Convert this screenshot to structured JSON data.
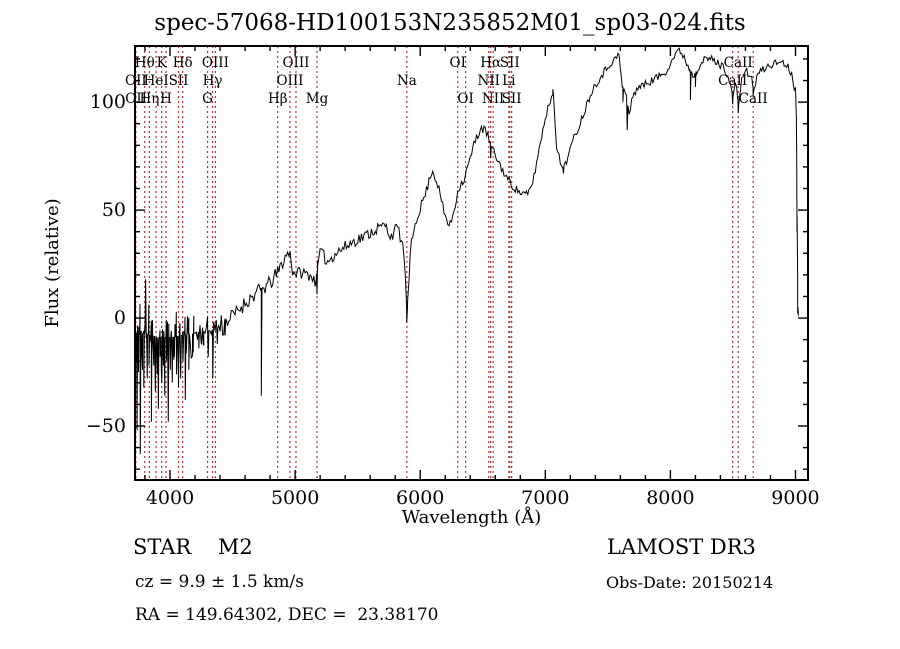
{
  "header": {
    "title": "spec-57068-HD100153N235852M01_sp03-024.fits"
  },
  "footer": {
    "class_text": "STAR    M2",
    "cz_text": "cz = 9.9 ± 1.5 km/s",
    "radec_text": "RA = 149.64302, DEC =  23.38170",
    "survey_text": "LAMOST DR3",
    "obsdate_text": "Obs-Date: 20150214"
  },
  "chart_data": {
    "type": "line",
    "title": "spec-57068-HD100153N235852M01_sp03-024.fits",
    "xlabel": "Wavelength (Å)",
    "ylabel": "Flux (relative)",
    "xlim": [
      3720,
      9100
    ],
    "ylim": [
      -75,
      126
    ],
    "x_ticks": [
      4000,
      5000,
      6000,
      7000,
      8000,
      9000
    ],
    "x_minor_step": 200,
    "y_ticks": [
      -50,
      0,
      50,
      100
    ],
    "y_minor_step": 10,
    "grid": false,
    "curve_color": "#000000",
    "line_marker_color": "#aa3333",
    "noise_seed": 11,
    "noise_segments": [
      {
        "from": 3720,
        "to": 3960,
        "amp": 20
      },
      {
        "from": 3960,
        "to": 4200,
        "amp": 12
      },
      {
        "from": 4200,
        "to": 4450,
        "amp": 7
      },
      {
        "from": 4450,
        "to": 5000,
        "amp": 3.5
      },
      {
        "from": 5000,
        "to": 5850,
        "amp": 2.8
      },
      {
        "from": 5850,
        "to": 6550,
        "amp": 2.2
      },
      {
        "from": 6550,
        "to": 7350,
        "amp": 1.8
      },
      {
        "from": 7350,
        "to": 8980,
        "amp": 1.8
      },
      {
        "from": 8980,
        "to": 9030,
        "amp": 6
      }
    ],
    "envelope": [
      [
        3720,
        -8
      ],
      [
        3800,
        -7
      ],
      [
        3900,
        -9
      ],
      [
        4000,
        -9
      ],
      [
        4100,
        -8
      ],
      [
        4200,
        -7
      ],
      [
        4300,
        -6
      ],
      [
        4400,
        -4
      ],
      [
        4500,
        1
      ],
      [
        4600,
        7
      ],
      [
        4700,
        12
      ],
      [
        4800,
        16
      ],
      [
        4860,
        21
      ],
      [
        4910,
        27
      ],
      [
        4955,
        31
      ],
      [
        4985,
        21
      ],
      [
        5050,
        21
      ],
      [
        5120,
        20
      ],
      [
        5160,
        17
      ],
      [
        5200,
        31
      ],
      [
        5260,
        26
      ],
      [
        5320,
        30
      ],
      [
        5400,
        33
      ],
      [
        5480,
        36
      ],
      [
        5560,
        38
      ],
      [
        5640,
        41
      ],
      [
        5720,
        43
      ],
      [
        5765,
        38
      ],
      [
        5820,
        42
      ],
      [
        5868,
        32
      ],
      [
        5895,
        2
      ],
      [
        5925,
        33
      ],
      [
        5960,
        44
      ],
      [
        6000,
        51
      ],
      [
        6050,
        59
      ],
      [
        6095,
        69
      ],
      [
        6140,
        62
      ],
      [
        6190,
        49
      ],
      [
        6235,
        42
      ],
      [
        6270,
        50
      ],
      [
        6310,
        61
      ],
      [
        6350,
        64
      ],
      [
        6400,
        74
      ],
      [
        6450,
        84
      ],
      [
        6490,
        88
      ],
      [
        6530,
        86
      ],
      [
        6570,
        79
      ],
      [
        6620,
        73
      ],
      [
        6680,
        66
      ],
      [
        6740,
        61
      ],
      [
        6800,
        58
      ],
      [
        6860,
        57
      ],
      [
        6905,
        64
      ],
      [
        6950,
        78
      ],
      [
        7000,
        93
      ],
      [
        7045,
        102
      ],
      [
        7065,
        104
      ],
      [
        7090,
        80
      ],
      [
        7130,
        69
      ],
      [
        7170,
        73
      ],
      [
        7220,
        82
      ],
      [
        7270,
        89
      ],
      [
        7320,
        97
      ],
      [
        7370,
        105
      ],
      [
        7420,
        110
      ],
      [
        7470,
        114
      ],
      [
        7520,
        118
      ],
      [
        7560,
        120
      ],
      [
        7590,
        122
      ],
      [
        7615,
        107
      ],
      [
        7645,
        104
      ],
      [
        7672,
        94
      ],
      [
        7700,
        103
      ],
      [
        7740,
        107
      ],
      [
        7790,
        108
      ],
      [
        7850,
        110
      ],
      [
        7910,
        112
      ],
      [
        7960,
        114
      ],
      [
        8010,
        119
      ],
      [
        8045,
        123
      ],
      [
        8075,
        124
      ],
      [
        8110,
        121
      ],
      [
        8145,
        116
      ],
      [
        8185,
        112
      ],
      [
        8230,
        117
      ],
      [
        8280,
        120
      ],
      [
        8330,
        120
      ],
      [
        8380,
        118
      ],
      [
        8430,
        116
      ],
      [
        8470,
        111
      ],
      [
        8500,
        102
      ],
      [
        8520,
        110
      ],
      [
        8545,
        98
      ],
      [
        8570,
        112
      ],
      [
        8610,
        114
      ],
      [
        8645,
        112
      ],
      [
        8665,
        105
      ],
      [
        8695,
        113
      ],
      [
        8740,
        115
      ],
      [
        8790,
        117
      ],
      [
        8840,
        118
      ],
      [
        8890,
        119
      ],
      [
        8930,
        117
      ],
      [
        8965,
        114
      ],
      [
        8995,
        111
      ],
      [
        9008,
        90
      ],
      [
        9015,
        30
      ],
      [
        9022,
        1
      ]
    ],
    "spikes": [
      [
        3715,
        -38
      ],
      [
        3728,
        -20
      ],
      [
        3737,
        -52
      ],
      [
        3748,
        -25
      ],
      [
        3762,
        -63
      ],
      [
        3775,
        -18
      ],
      [
        3790,
        -32
      ],
      [
        3805,
        18
      ],
      [
        3818,
        -28
      ],
      [
        3832,
        -22
      ],
      [
        3851,
        -48
      ],
      [
        3866,
        -15
      ],
      [
        3882,
        -34
      ],
      [
        3897,
        -26
      ],
      [
        3907,
        -42
      ],
      [
        3921,
        -18
      ],
      [
        3934,
        -30
      ],
      [
        3947,
        -22
      ],
      [
        3958,
        -36
      ],
      [
        3972,
        -20
      ],
      [
        3986,
        -48
      ],
      [
        4002,
        -24
      ],
      [
        4018,
        -30
      ],
      [
        4035,
        -18
      ],
      [
        4052,
        -26
      ],
      [
        4068,
        -32
      ],
      [
        4085,
        -28
      ],
      [
        4104,
        -20
      ],
      [
        4122,
        -38
      ],
      [
        4150,
        -24
      ],
      [
        4185,
        -16
      ],
      [
        4230,
        -14
      ],
      [
        4265,
        -12
      ],
      [
        4305,
        -18
      ],
      [
        4342,
        -28
      ],
      [
        4378,
        -12
      ],
      [
        4440,
        -8
      ],
      [
        4730,
        -36
      ],
      [
        5175,
        11
      ],
      [
        5893,
        -2
      ],
      [
        6563,
        74
      ],
      [
        7060,
        106
      ],
      [
        7145,
        67
      ],
      [
        7620,
        100
      ],
      [
        7655,
        87
      ],
      [
        8160,
        101
      ],
      [
        8200,
        107
      ],
      [
        8498,
        99
      ],
      [
        8542,
        95
      ],
      [
        8662,
        103
      ],
      [
        9012,
        40
      ],
      [
        9018,
        2
      ]
    ],
    "lines": [
      3727,
      3798,
      3835,
      3889,
      3933,
      3968,
      4068,
      4101,
      4300,
      4340,
      4363,
      4861,
      4959,
      5007,
      5175,
      5893,
      6300,
      6363,
      6548,
      6563,
      6583,
      6708,
      6716,
      6731,
      8498,
      8542,
      8662
    ],
    "line_labels": [
      {
        "wl": 3798,
        "text": "Hθ",
        "row": 0
      },
      {
        "wl": 3933,
        "text": "K",
        "row": 0
      },
      {
        "wl": 4101,
        "text": "Hδ",
        "row": 0
      },
      {
        "wl": 4363,
        "text": "OIII",
        "row": 0
      },
      {
        "wl": 5007,
        "text": "OIII",
        "row": 0
      },
      {
        "wl": 6300,
        "text": "OI",
        "row": 0
      },
      {
        "wl": 6563,
        "text": "Hα",
        "row": 0
      },
      {
        "wl": 6716,
        "text": "SII",
        "row": 0
      },
      {
        "wl": 8542,
        "text": "CaII",
        "row": 0
      },
      {
        "wl": 3727,
        "text": "OII",
        "row": 1
      },
      {
        "wl": 3889,
        "text": "HeI",
        "row": 1
      },
      {
        "wl": 4068,
        "text": "SII",
        "row": 1
      },
      {
        "wl": 4340,
        "text": "Hγ",
        "row": 1
      },
      {
        "wl": 4959,
        "text": "OIII",
        "row": 1
      },
      {
        "wl": 5893,
        "text": "Na",
        "row": 1
      },
      {
        "wl": 6548,
        "text": "NII",
        "row": 1
      },
      {
        "wl": 6708,
        "text": "Li",
        "row": 1
      },
      {
        "wl": 8498,
        "text": "CaII",
        "row": 1
      },
      {
        "wl": 3729,
        "text": "OII",
        "row": 2
      },
      {
        "wl": 3835,
        "text": "Hη",
        "row": 2
      },
      {
        "wl": 3968,
        "text": "H",
        "row": 2
      },
      {
        "wl": 4300,
        "text": "G",
        "row": 2
      },
      {
        "wl": 4861,
        "text": "Hβ",
        "row": 2
      },
      {
        "wl": 5175,
        "text": "Mg",
        "row": 2
      },
      {
        "wl": 6363,
        "text": "OI",
        "row": 2
      },
      {
        "wl": 6583,
        "text": "NII",
        "row": 2
      },
      {
        "wl": 6731,
        "text": "SII",
        "row": 2
      },
      {
        "wl": 8662,
        "text": "CaII",
        "row": 2
      }
    ]
  }
}
